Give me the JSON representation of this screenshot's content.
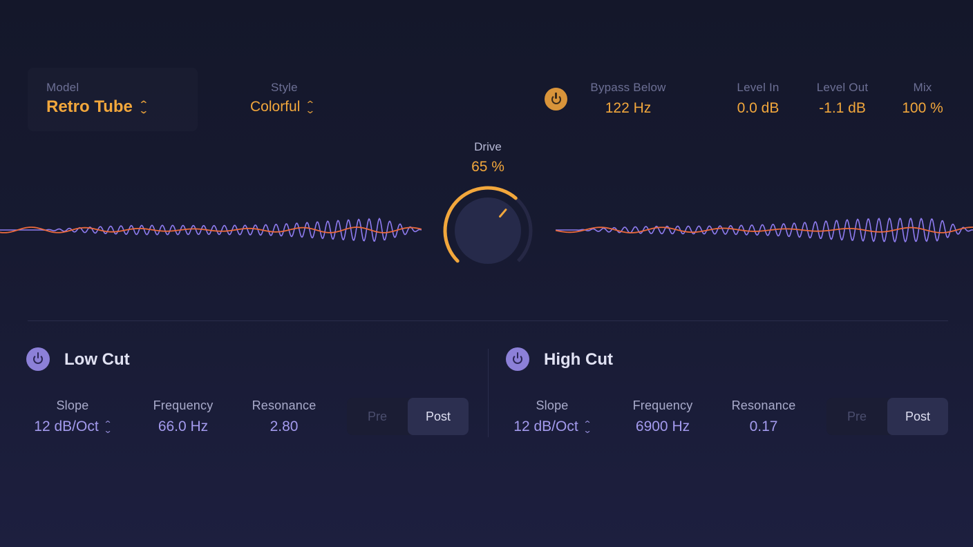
{
  "header": {
    "model": {
      "label": "Model",
      "value": "Retro Tube"
    },
    "style": {
      "label": "Style",
      "value": "Colorful"
    },
    "bypass_below": {
      "label": "Bypass Below",
      "value": "122 Hz",
      "enabled": true
    },
    "level_in": {
      "label": "Level In",
      "value": "0.0 dB"
    },
    "level_out": {
      "label": "Level Out",
      "value": "-1.1 dB"
    },
    "mix": {
      "label": "Mix",
      "value": "100 %"
    }
  },
  "drive": {
    "label": "Drive",
    "value": "65 %",
    "level": 0.65
  },
  "low_cut": {
    "title": "Low Cut",
    "slope": {
      "label": "Slope",
      "value": "12 dB/Oct"
    },
    "frequency": {
      "label": "Frequency",
      "value": "66.0 Hz"
    },
    "resonance": {
      "label": "Resonance",
      "value": "2.80"
    },
    "pre_label": "Pre",
    "post_label": "Post",
    "selected": "Post"
  },
  "high_cut": {
    "title": "High Cut",
    "slope": {
      "label": "Slope",
      "value": "12 dB/Oct"
    },
    "frequency": {
      "label": "Frequency",
      "value": "6900 Hz"
    },
    "resonance": {
      "label": "Resonance",
      "value": "0.17"
    },
    "pre_label": "Pre",
    "post_label": "Post",
    "selected": "Post"
  },
  "colors": {
    "accent_orange": "#f2a73c",
    "accent_purple": "#8c80d8",
    "wave_purple": "#8f7cf0",
    "wave_orange": "#ec6a3c",
    "background": "#171a31"
  },
  "icons": {
    "power": "power-icon",
    "updown": "chevron-updown-icon"
  }
}
